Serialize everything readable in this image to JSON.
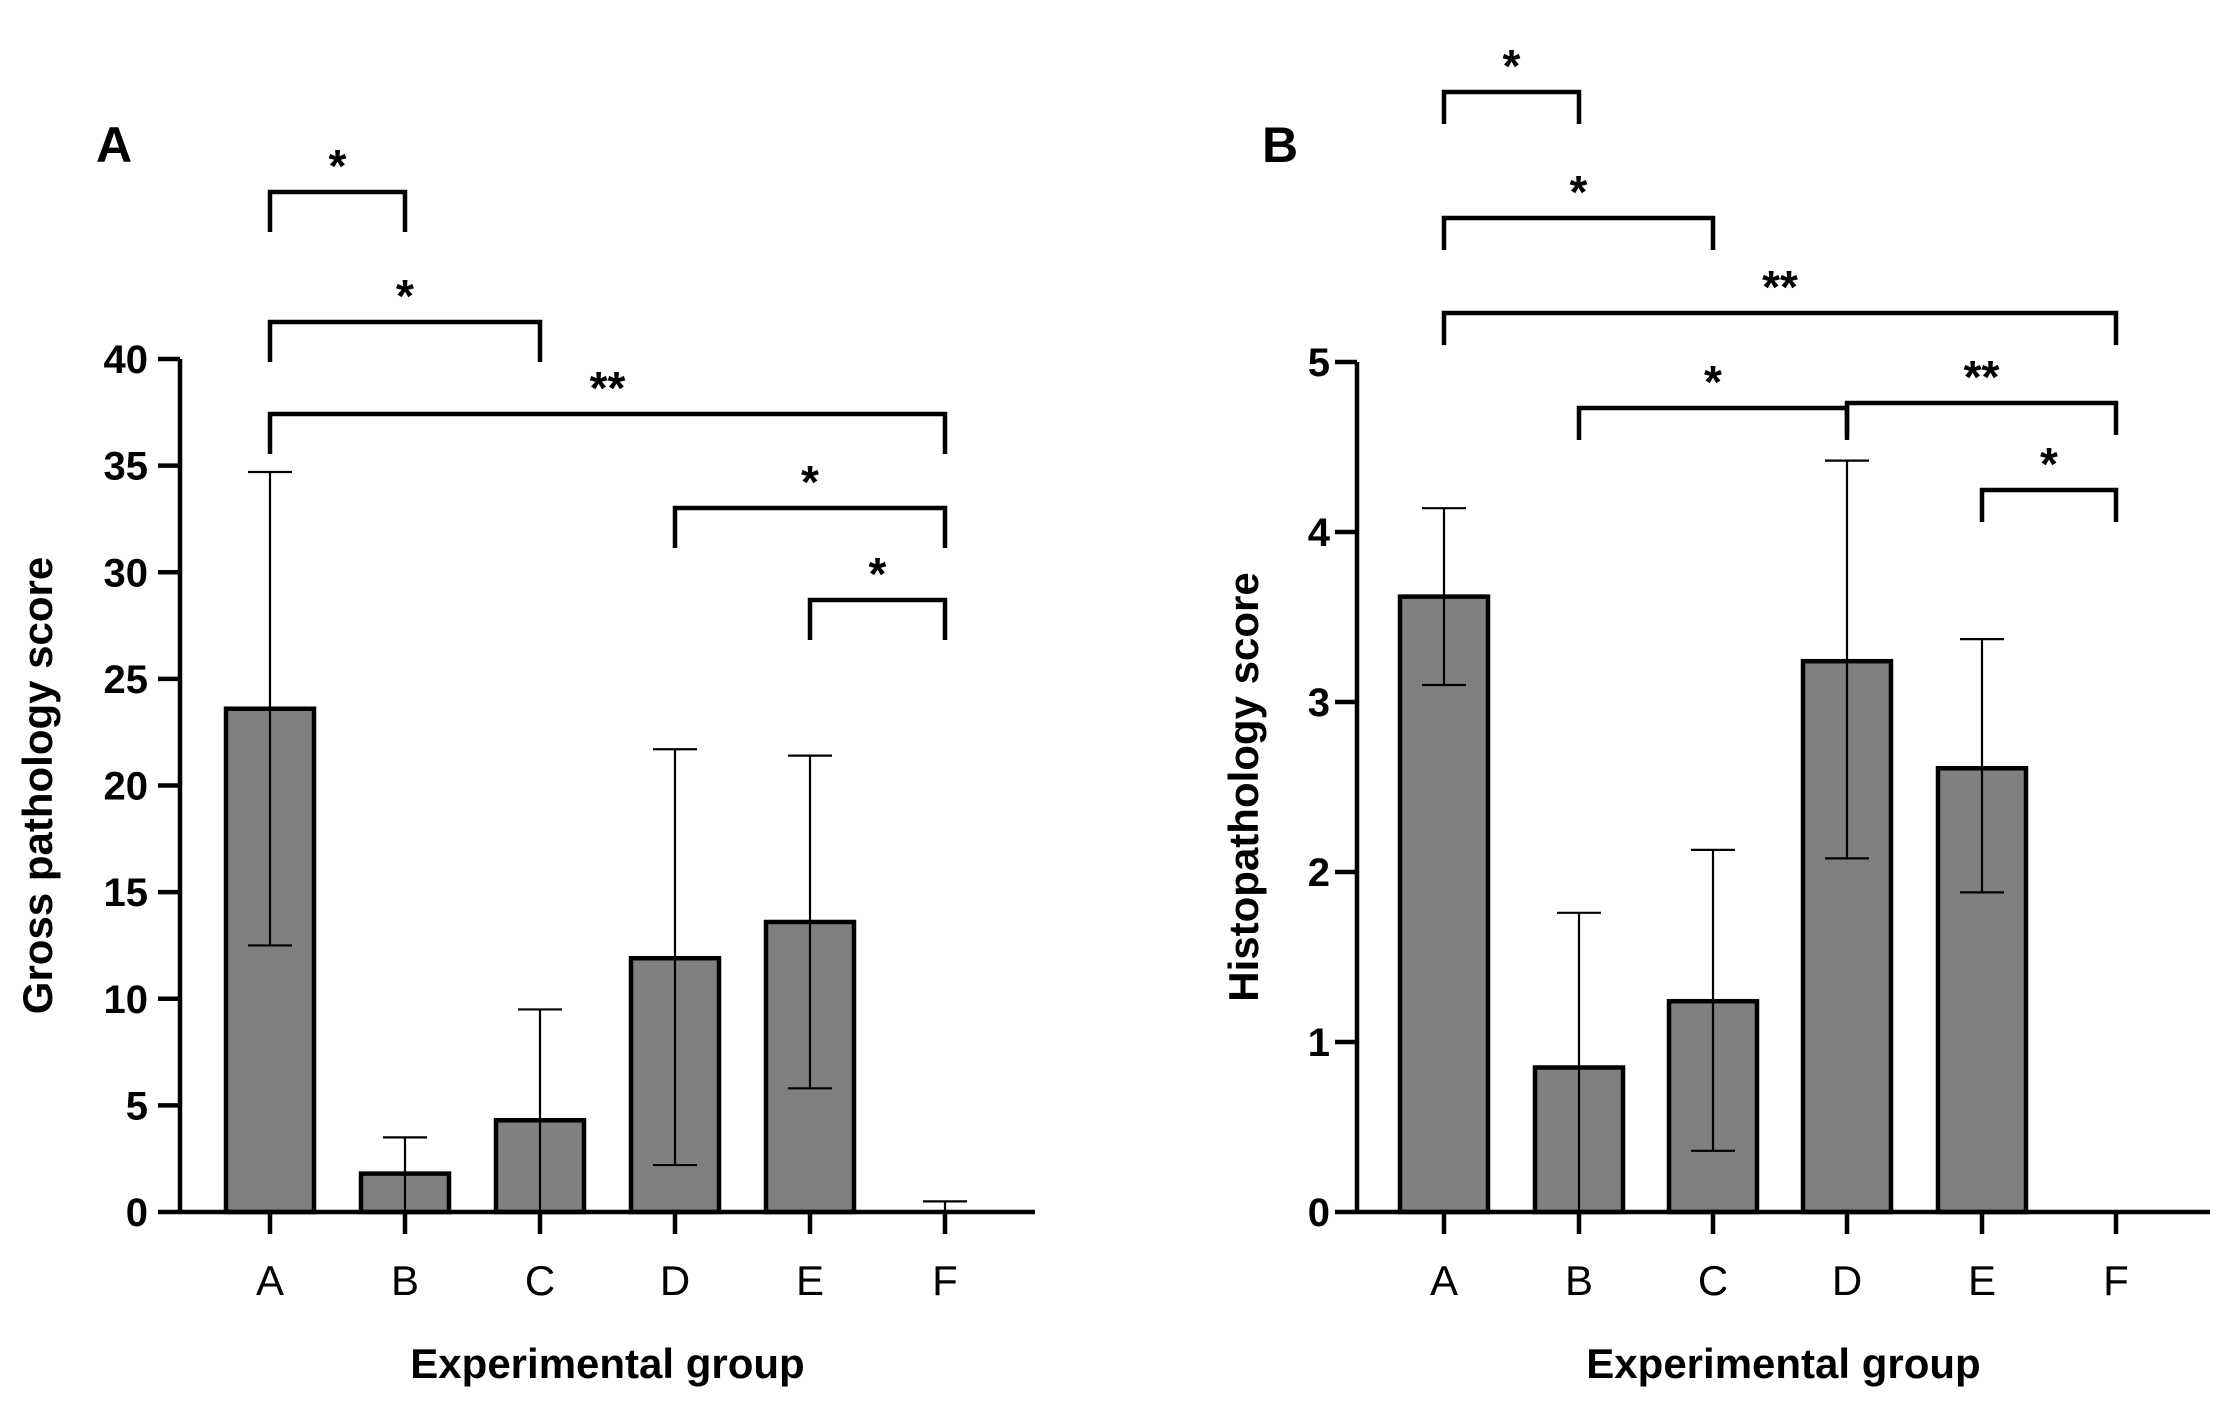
{
  "chart_data": [
    {
      "panel": "A",
      "type": "bar",
      "xlabel": "Experimental group",
      "ylabel": "Gross pathology score",
      "categories": [
        "A",
        "B",
        "C",
        "D",
        "E",
        "F"
      ],
      "values": [
        23.6,
        1.8,
        4.3,
        11.9,
        13.6,
        0
      ],
      "error_upper": [
        34.7,
        3.5,
        9.5,
        21.7,
        21.4,
        0.5
      ],
      "error_lower": [
        12.5,
        0,
        0,
        2.2,
        5.8,
        0
      ],
      "ylim": [
        0,
        40
      ],
      "yticks": [
        "0",
        "5",
        "10",
        "15",
        "20",
        "25",
        "30",
        "35",
        "40"
      ],
      "bar_color": "#808080",
      "significance": [
        {
          "from": "A",
          "to": "B",
          "label": "*"
        },
        {
          "from": "A",
          "to": "C",
          "label": "*"
        },
        {
          "from": "A",
          "to": "F",
          "label": "**"
        },
        {
          "from": "D",
          "to": "F",
          "label": "*"
        },
        {
          "from": "E",
          "to": "F",
          "label": "*"
        }
      ]
    },
    {
      "panel": "B",
      "type": "bar",
      "xlabel": "Experimental group",
      "ylabel": "Histopathology score",
      "categories": [
        "A",
        "B",
        "C",
        "D",
        "E",
        "F"
      ],
      "values": [
        3.62,
        0.85,
        1.24,
        3.24,
        2.61,
        0
      ],
      "error_upper": [
        4.14,
        1.76,
        2.13,
        4.42,
        3.37,
        0
      ],
      "error_lower": [
        3.1,
        0,
        0.36,
        2.08,
        1.88,
        0
      ],
      "ylim": [
        0,
        5
      ],
      "yticks": [
        "0",
        "1",
        "2",
        "3",
        "4",
        "5"
      ],
      "bar_color": "#808080",
      "significance": [
        {
          "from": "A",
          "to": "B",
          "label": "*"
        },
        {
          "from": "A",
          "to": "C",
          "label": "*"
        },
        {
          "from": "A",
          "to": "F",
          "label": "**"
        },
        {
          "from": "B",
          "to": "D",
          "label": "*"
        },
        {
          "from": "D",
          "to": "F",
          "label": "**"
        },
        {
          "from": "E",
          "to": "F",
          "label": "*"
        }
      ]
    }
  ]
}
